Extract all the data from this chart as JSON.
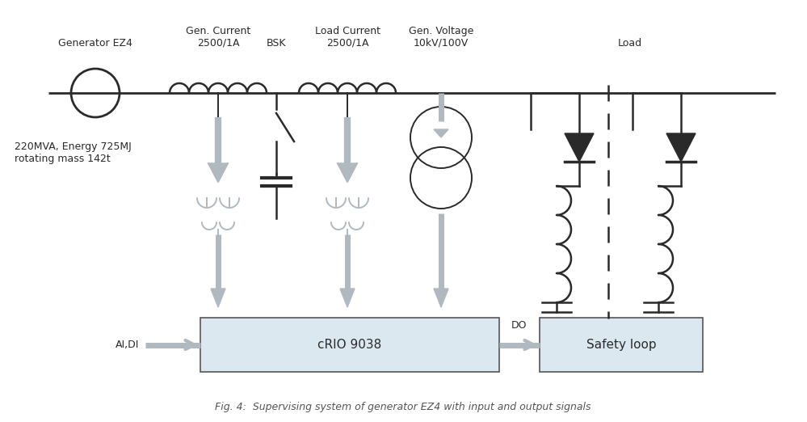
{
  "title": "Fig. 4:  Supervising system of generator EZ4 with input and output signals",
  "bg_color": "#ffffff",
  "line_color": "#2a2a2a",
  "gray_color": "#b0b8c0",
  "box_fill_color": "#dce8f0",
  "box_edge_color": "#555555",
  "labels": {
    "generator": "Generator EZ4",
    "gen_current": "Gen. Current\n2500/1A",
    "bsk": "BSK",
    "load_current": "Load Current\n2500/1A",
    "gen_voltage": "Gen. Voltage\n10kV/100V",
    "load": "Load",
    "gen_info": "220MVA, Energy 725MJ\nrotating mass 142t",
    "crio": "cRIO 9038",
    "safety": "Safety loop",
    "ai_di": "AI,DI",
    "do_label": "DO"
  }
}
